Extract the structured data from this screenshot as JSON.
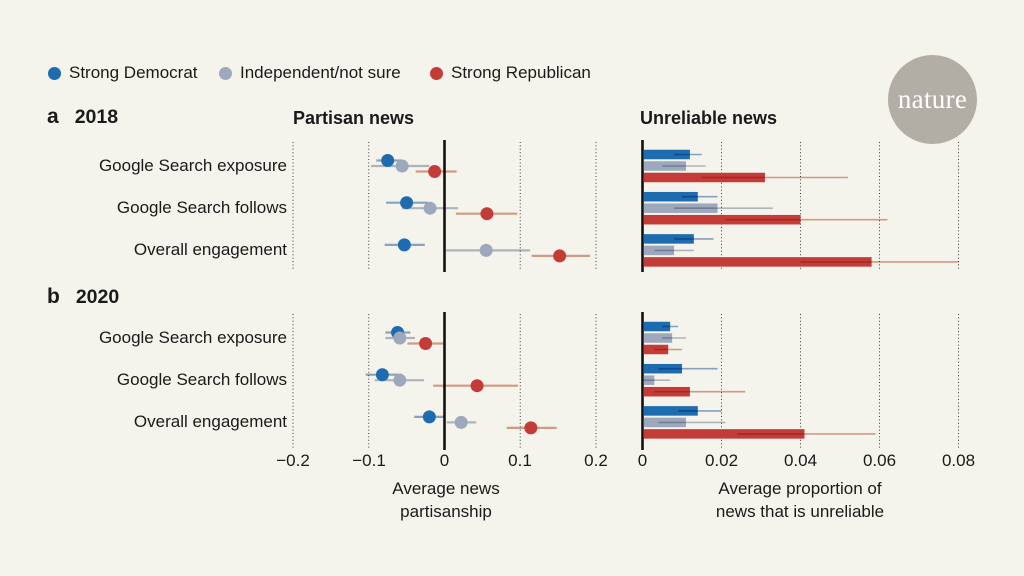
{
  "page": {
    "background": "#f4f3ec",
    "text_color": "#1a1a1a"
  },
  "logo": {
    "text": "nature",
    "circle_color": "#b2aea6",
    "text_color": "#ffffff"
  },
  "legend": {
    "items": [
      {
        "label": "Strong Democrat",
        "color": "#1d6cb0",
        "line_color": "#8ea9cc"
      },
      {
        "label": "Independent/not sure",
        "color": "#9ea8bc",
        "line_color": "#b7bdcb"
      },
      {
        "label": "Strong Republican",
        "color": "#c43c38",
        "line_color": "#dba28e"
      }
    ]
  },
  "panel_labels": [
    {
      "letter": "a",
      "year": "2018"
    },
    {
      "letter": "b",
      "year": "2020"
    }
  ],
  "row_labels": [
    "Google Search exposure",
    "Google Search follows",
    "Overall engagement"
  ],
  "chart_data": [
    {
      "type": "scatter",
      "title": "Partisan news",
      "xlabel": "Average news partisanship",
      "xlabel_lines": [
        "Average news",
        "partisanship"
      ],
      "xlim": [
        -0.2,
        0.2
      ],
      "grid": "dotted-vertical, solid line at 0",
      "xticks": [
        -0.2,
        -0.1,
        0,
        0.1,
        0.2
      ],
      "xtick_labels": [
        "−0.2",
        "−0.1",
        "0",
        "0.1",
        "0.2"
      ],
      "groups": [
        {
          "year": "2018",
          "rows": [
            {
              "label": "Google Search exposure",
              "points": [
                {
                  "series": "Strong Democrat",
                  "value": -0.075,
                  "ci": [
                    -0.09,
                    -0.056
                  ]
                },
                {
                  "series": "Independent/not sure",
                  "value": -0.056,
                  "ci": [
                    -0.097,
                    -0.02
                  ]
                },
                {
                  "series": "Strong Republican",
                  "value": -0.013,
                  "ci": [
                    -0.038,
                    0.016
                  ]
                }
              ]
            },
            {
              "label": "Google Search follows",
              "points": [
                {
                  "series": "Strong Democrat",
                  "value": -0.05,
                  "ci": [
                    -0.077,
                    -0.022
                  ]
                },
                {
                  "series": "Independent/not sure",
                  "value": -0.019,
                  "ci": [
                    -0.056,
                    0.018
                  ]
                },
                {
                  "series": "Strong Republican",
                  "value": 0.056,
                  "ci": [
                    0.015,
                    0.096
                  ]
                }
              ]
            },
            {
              "label": "Overall engagement",
              "points": [
                {
                  "series": "Strong Democrat",
                  "value": -0.053,
                  "ci": [
                    -0.079,
                    -0.026
                  ]
                },
                {
                  "series": "Independent/not sure",
                  "value": 0.055,
                  "ci": [
                    0.002,
                    0.113
                  ]
                },
                {
                  "series": "Strong Republican",
                  "value": 0.152,
                  "ci": [
                    0.115,
                    0.192
                  ]
                }
              ]
            }
          ]
        },
        {
          "year": "2020",
          "rows": [
            {
              "label": "Google Search exposure",
              "points": [
                {
                  "series": "Strong Democrat",
                  "value": -0.062,
                  "ci": [
                    -0.078,
                    -0.045
                  ]
                },
                {
                  "series": "Independent/not sure",
                  "value": -0.059,
                  "ci": [
                    -0.078,
                    -0.039
                  ]
                },
                {
                  "series": "Strong Republican",
                  "value": -0.025,
                  "ci": [
                    -0.049,
                    -0.002
                  ]
                }
              ]
            },
            {
              "label": "Google Search follows",
              "points": [
                {
                  "series": "Strong Democrat",
                  "value": -0.082,
                  "ci": [
                    -0.104,
                    -0.056
                  ]
                },
                {
                  "series": "Independent/not sure",
                  "value": -0.059,
                  "ci": [
                    -0.092,
                    -0.027
                  ]
                },
                {
                  "series": "Strong Republican",
                  "value": 0.043,
                  "ci": [
                    -0.015,
                    0.097
                  ]
                }
              ]
            },
            {
              "label": "Overall engagement",
              "points": [
                {
                  "series": "Strong Democrat",
                  "value": -0.02,
                  "ci": [
                    -0.04,
                    0.0
                  ]
                },
                {
                  "series": "Independent/not sure",
                  "value": 0.022,
                  "ci": [
                    0.003,
                    0.042
                  ]
                },
                {
                  "series": "Strong Republican",
                  "value": 0.114,
                  "ci": [
                    0.082,
                    0.148
                  ]
                }
              ]
            }
          ]
        }
      ]
    },
    {
      "type": "bar",
      "title": "Unreliable news",
      "xlabel": "Average proportion of news that is unreliable",
      "xlabel_lines": [
        "Average proportion of",
        "news that is unreliable"
      ],
      "xlim": [
        0,
        0.08
      ],
      "grid": "dotted-vertical, solid axis at 0",
      "xticks": [
        0,
        0.02,
        0.04,
        0.06,
        0.08
      ],
      "xtick_labels": [
        "0",
        "0.02",
        "0.04",
        "0.06",
        "0.08"
      ],
      "groups": [
        {
          "year": "2018",
          "rows": [
            {
              "label": "Google Search exposure",
              "points": [
                {
                  "series": "Strong Democrat",
                  "value": 0.012,
                  "ci": [
                    0.008,
                    0.015
                  ]
                },
                {
                  "series": "Independent/not sure",
                  "value": 0.011,
                  "ci": [
                    0.005,
                    0.016
                  ]
                },
                {
                  "series": "Strong Republican",
                  "value": 0.031,
                  "ci": [
                    0.015,
                    0.052
                  ]
                }
              ]
            },
            {
              "label": "Google Search follows",
              "points": [
                {
                  "series": "Strong Democrat",
                  "value": 0.014,
                  "ci": [
                    0.01,
                    0.019
                  ]
                },
                {
                  "series": "Independent/not sure",
                  "value": 0.019,
                  "ci": [
                    0.008,
                    0.033
                  ]
                },
                {
                  "series": "Strong Republican",
                  "value": 0.04,
                  "ci": [
                    0.021,
                    0.062
                  ]
                }
              ]
            },
            {
              "label": "Overall engagement",
              "points": [
                {
                  "series": "Strong Democrat",
                  "value": 0.013,
                  "ci": [
                    0.008,
                    0.018
                  ]
                },
                {
                  "series": "Independent/not sure",
                  "value": 0.008,
                  "ci": [
                    0.003,
                    0.013
                  ]
                },
                {
                  "series": "Strong Republican",
                  "value": 0.058,
                  "ci": [
                    0.04,
                    0.08
                  ]
                }
              ]
            }
          ]
        },
        {
          "year": "2020",
          "rows": [
            {
              "label": "Google Search exposure",
              "points": [
                {
                  "series": "Strong Democrat",
                  "value": 0.007,
                  "ci": [
                    0.005,
                    0.009
                  ]
                },
                {
                  "series": "Independent/not sure",
                  "value": 0.0075,
                  "ci": [
                    0.005,
                    0.011
                  ]
                },
                {
                  "series": "Strong Republican",
                  "value": 0.0065,
                  "ci": [
                    0.003,
                    0.01
                  ]
                }
              ]
            },
            {
              "label": "Google Search follows",
              "points": [
                {
                  "series": "Strong Democrat",
                  "value": 0.01,
                  "ci": [
                    0.004,
                    0.019
                  ]
                },
                {
                  "series": "Independent/not sure",
                  "value": 0.003,
                  "ci": [
                    0.0,
                    0.007
                  ]
                },
                {
                  "series": "Strong Republican",
                  "value": 0.012,
                  "ci": [
                    0.003,
                    0.026
                  ]
                }
              ]
            },
            {
              "label": "Overall engagement",
              "points": [
                {
                  "series": "Strong Democrat",
                  "value": 0.014,
                  "ci": [
                    0.009,
                    0.02
                  ]
                },
                {
                  "series": "Independent/not sure",
                  "value": 0.011,
                  "ci": [
                    0.004,
                    0.021
                  ]
                },
                {
                  "series": "Strong Republican",
                  "value": 0.041,
                  "ci": [
                    0.024,
                    0.059
                  ]
                }
              ]
            }
          ]
        }
      ]
    }
  ]
}
